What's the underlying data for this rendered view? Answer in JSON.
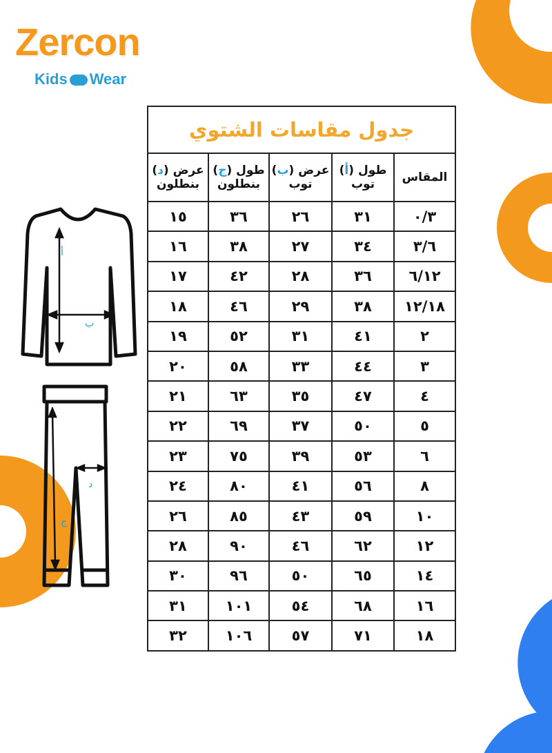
{
  "brand": {
    "name": "Zercon",
    "tagline_left": "Kids",
    "tagline_right": "Wear",
    "colors": {
      "orange": "#f39a1e",
      "blue": "#2a9fd6"
    }
  },
  "table": {
    "title": "جدول مقاسات الشتوي",
    "headers": [
      {
        "line1": "المقاس",
        "letter": "",
        "line2": ""
      },
      {
        "line1": "طول",
        "letter": "أ",
        "line2": "توب"
      },
      {
        "line1": "عرض",
        "letter": "ب",
        "line2": "توب"
      },
      {
        "line1": "طول",
        "letter": "ج",
        "line2": "بنطلون"
      },
      {
        "line1": "عرض",
        "letter": "د",
        "line2": "بنطلون"
      }
    ],
    "rows": [
      [
        "٠/٣",
        "٣١",
        "٢٦",
        "٣٦",
        "١٥"
      ],
      [
        "٣/٦",
        "٣٤",
        "٢٧",
        "٣٨",
        "١٦"
      ],
      [
        "٦/١٢",
        "٣٦",
        "٢٨",
        "٤٢",
        "١٧"
      ],
      [
        "١٢/١٨",
        "٣٨",
        "٢٩",
        "٤٦",
        "١٨"
      ],
      [
        "٢",
        "٤١",
        "٣١",
        "٥٢",
        "١٩"
      ],
      [
        "٣",
        "٤٤",
        "٣٣",
        "٥٨",
        "٢٠"
      ],
      [
        "٤",
        "٤٧",
        "٣٥",
        "٦٣",
        "٢١"
      ],
      [
        "٥",
        "٥٠",
        "٣٧",
        "٦٩",
        "٢٢"
      ],
      [
        "٦",
        "٥٣",
        "٣٩",
        "٧٥",
        "٢٣"
      ],
      [
        "٨",
        "٥٦",
        "٤١",
        "٨٠",
        "٢٤"
      ],
      [
        "١٠",
        "٥٩",
        "٤٣",
        "٨٥",
        "٢٦"
      ],
      [
        "١٢",
        "٦٢",
        "٤٦",
        "٩٠",
        "٢٨"
      ],
      [
        "١٤",
        "٦٥",
        "٥٠",
        "٩٦",
        "٣٠"
      ],
      [
        "١٦",
        "٦٨",
        "٥٤",
        "١٠١",
        "٣١"
      ],
      [
        "١٨",
        "٧١",
        "٥٧",
        "١٠٦",
        "٣٢"
      ]
    ]
  },
  "diagram": {
    "labels": {
      "top_length": "أ",
      "top_width": "ب",
      "pants_length": "ج",
      "pants_width": "د"
    }
  }
}
